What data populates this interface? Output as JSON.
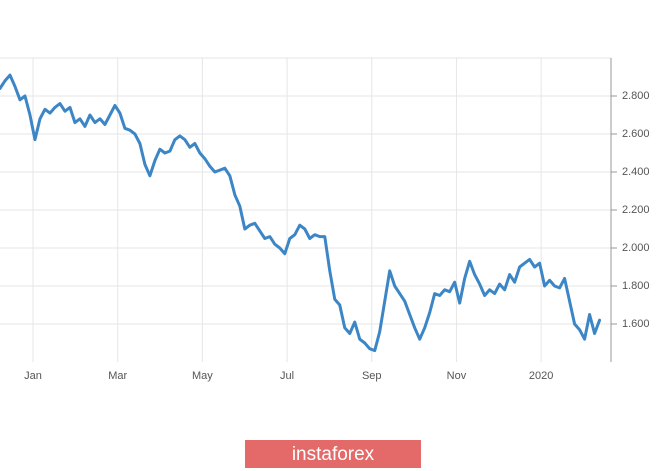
{
  "chart_data": {
    "type": "line",
    "color": "#3d86c6",
    "grid": true,
    "xlim": [
      -0.78,
      13.65
    ],
    "xticks": [
      {
        "value": 0,
        "label": "Jan"
      },
      {
        "value": 2,
        "label": "Mar"
      },
      {
        "value": 4,
        "label": "May"
      },
      {
        "value": 6,
        "label": "Jul"
      },
      {
        "value": 8,
        "label": "Sep"
      },
      {
        "value": 10,
        "label": "Nov"
      },
      {
        "value": 12,
        "label": "2020"
      }
    ],
    "ylim": [
      1.4,
      3.0
    ],
    "yticks": [
      {
        "value": 1.6,
        "label": "1.600"
      },
      {
        "value": 1.8,
        "label": "1.800"
      },
      {
        "value": 2.0,
        "label": "2.000"
      },
      {
        "value": 2.2,
        "label": "2.200"
      },
      {
        "value": 2.4,
        "label": "2.400"
      },
      {
        "value": 2.6,
        "label": "2.600"
      },
      {
        "value": 2.8,
        "label": "2.800"
      }
    ],
    "x": [
      -0.78,
      -0.662,
      -0.544,
      -0.426,
      -0.308,
      -0.19,
      -0.072,
      0.046,
      0.164,
      0.282,
      0.4,
      0.518,
      0.636,
      0.754,
      0.872,
      0.99,
      1.108,
      1.226,
      1.344,
      1.462,
      1.58,
      1.698,
      1.816,
      1.934,
      2.052,
      2.17,
      2.288,
      2.406,
      2.524,
      2.642,
      2.76,
      2.878,
      2.996,
      3.114,
      3.232,
      3.35,
      3.468,
      3.586,
      3.704,
      3.822,
      3.94,
      4.058,
      4.176,
      4.294,
      4.412,
      4.53,
      4.648,
      4.766,
      4.884,
      5.002,
      5.12,
      5.238,
      5.356,
      5.474,
      5.592,
      5.71,
      5.828,
      5.946,
      6.064,
      6.182,
      6.3,
      6.418,
      6.536,
      6.654,
      6.772,
      6.89,
      7.008,
      7.126,
      7.244,
      7.362,
      7.48,
      7.598,
      7.716,
      7.834,
      7.952,
      8.07,
      8.188,
      8.306,
      8.424,
      8.542,
      8.66,
      8.778,
      8.896,
      9.014,
      9.132,
      9.25,
      9.368,
      9.486,
      9.604,
      9.722,
      9.84,
      9.958,
      10.076,
      10.194,
      10.312,
      10.43,
      10.548,
      10.666,
      10.784,
      10.902,
      11.02,
      11.138,
      11.256,
      11.374,
      11.492,
      11.61,
      11.728,
      11.846,
      11.964,
      12.082,
      12.2,
      12.318,
      12.436,
      12.554,
      12.672,
      12.79,
      12.908,
      13.026,
      13.144,
      13.262,
      13.38
    ],
    "values": [
      2.84,
      2.88,
      2.91,
      2.85,
      2.78,
      2.8,
      2.7,
      2.57,
      2.68,
      2.73,
      2.71,
      2.74,
      2.76,
      2.72,
      2.74,
      2.66,
      2.68,
      2.64,
      2.7,
      2.66,
      2.68,
      2.65,
      2.7,
      2.75,
      2.71,
      2.63,
      2.62,
      2.6,
      2.55,
      2.44,
      2.38,
      2.46,
      2.52,
      2.5,
      2.51,
      2.57,
      2.59,
      2.57,
      2.53,
      2.55,
      2.5,
      2.47,
      2.43,
      2.4,
      2.41,
      2.42,
      2.38,
      2.28,
      2.22,
      2.1,
      2.12,
      2.13,
      2.09,
      2.05,
      2.06,
      2.02,
      2.0,
      1.97,
      2.05,
      2.07,
      2.12,
      2.1,
      2.05,
      2.07,
      2.06,
      2.06,
      1.88,
      1.73,
      1.7,
      1.58,
      1.55,
      1.61,
      1.52,
      1.5,
      1.47,
      1.46,
      1.56,
      1.72,
      1.88,
      1.8,
      1.76,
      1.72,
      1.65,
      1.58,
      1.52,
      1.58,
      1.66,
      1.76,
      1.75,
      1.78,
      1.77,
      1.82,
      1.71,
      1.84,
      1.93,
      1.86,
      1.81,
      1.75,
      1.78,
      1.76,
      1.81,
      1.78,
      1.86,
      1.82,
      1.9,
      1.92,
      1.94,
      1.9,
      1.92,
      1.8,
      1.83,
      1.8,
      1.79,
      1.84,
      1.72,
      1.6,
      1.57,
      1.52,
      1.65,
      1.55,
      1.62
    ]
  },
  "watermark": "instaforex"
}
